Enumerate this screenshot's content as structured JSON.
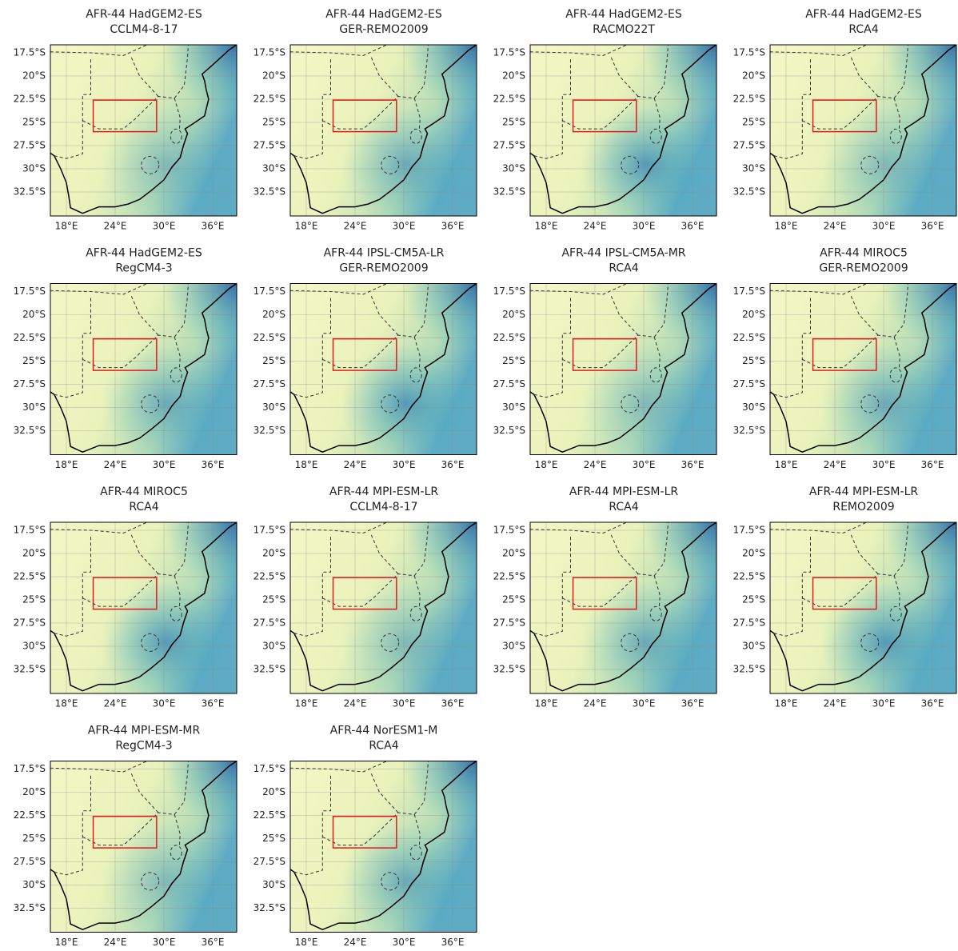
{
  "yticks": [
    "17.5°S",
    "20°S",
    "22.5°S",
    "25°S",
    "27.5°S",
    "30°S",
    "32.5°S"
  ],
  "xticks": [
    "18°E",
    "24°E",
    "30°E",
    "36°E"
  ],
  "panels": [
    {
      "title": [
        "AFR-44 HadGEM2-ES",
        "CCLM4-8-17"
      ]
    },
    {
      "title": [
        "AFR-44 HadGEM2-ES",
        "GER-REMO2009"
      ]
    },
    {
      "title": [
        "AFR-44 HadGEM2-ES",
        "RACMO22T"
      ]
    },
    {
      "title": [
        "AFR-44 HadGEM2-ES",
        "RCA4"
      ]
    },
    {
      "title": [
        "AFR-44 HadGEM2-ES",
        "RegCM4-3"
      ]
    },
    {
      "title": [
        "AFR-44 IPSL-CM5A-LR",
        "GER-REMO2009"
      ]
    },
    {
      "title": [
        "AFR-44 IPSL-CM5A-MR",
        "RCA4"
      ]
    },
    {
      "title": [
        "AFR-44 MIROC5",
        "GER-REMO2009"
      ]
    },
    {
      "title": [
        "AFR-44 MIROC5",
        "RCA4"
      ]
    },
    {
      "title": [
        "AFR-44 MPI-ESM-LR",
        "CCLM4-8-17"
      ]
    },
    {
      "title": [
        "AFR-44 MPI-ESM-LR",
        "RCA4"
      ]
    },
    {
      "title": [
        "AFR-44 MPI-ESM-LR",
        "REMO2009"
      ]
    },
    {
      "title": [
        "AFR-44 MPI-ESM-MR",
        "RegCM4-3"
      ]
    },
    {
      "title": [
        "AFR-44 NorESM1-M",
        "RCA4"
      ]
    }
  ]
}
